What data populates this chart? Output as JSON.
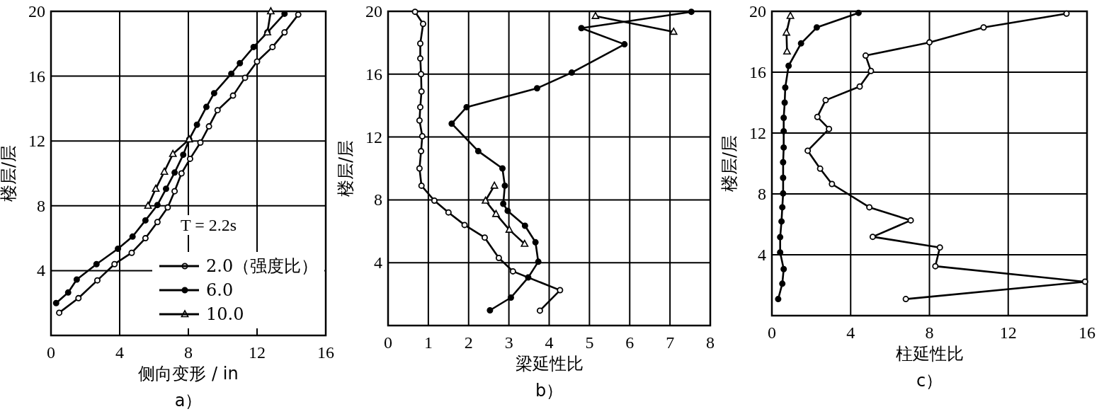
{
  "chart_data": [
    {
      "type": "line",
      "title": "a）",
      "xlabel": "侧向变形 / in",
      "ylabel": "楼层/层",
      "xlim": [
        0,
        16
      ],
      "ylim": [
        0,
        20
      ],
      "xticks": [
        0,
        4,
        8,
        12,
        16
      ],
      "yticks": [
        4,
        8,
        12,
        16,
        20
      ],
      "grid": true,
      "legend": "bottom right",
      "annotations": [
        "T = 2.2s"
      ],
      "series": [
        {
          "name": "2.0（强度比）",
          "color": "#000000",
          "marker": "circle",
          "x": [
            0.48,
            1.6,
            2.7,
            3.7,
            4.7,
            5.5,
            6.2,
            6.8,
            7.2,
            7.6,
            8.1,
            8.7,
            9.2,
            9.7,
            10.6,
            11.3,
            12.0,
            12.9,
            13.6,
            14.4
          ],
          "values": [
            1.4,
            2.3,
            3.4,
            4.4,
            5.1,
            6.0,
            7.0,
            7.9,
            8.9,
            10.0,
            10.9,
            11.9,
            12.9,
            13.9,
            14.8,
            15.9,
            16.9,
            17.8,
            18.7,
            19.8
          ]
        },
        {
          "name": "6.0",
          "color": "#000000",
          "marker": "circle",
          "x": [
            0.3,
            1.0,
            1.5,
            2.65,
            3.9,
            4.75,
            5.5,
            6.2,
            6.7,
            7.2,
            7.7,
            8.05,
            8.5,
            9.05,
            9.5,
            10.5,
            11.0,
            11.8,
            12.6,
            13.6
          ],
          "values": [
            2.0,
            2.65,
            3.45,
            4.4,
            5.35,
            6.1,
            7.1,
            8.05,
            9.05,
            10.05,
            11.15,
            12.1,
            13.0,
            14.1,
            14.95,
            16.15,
            16.8,
            17.8,
            18.7,
            19.85
          ]
        },
        {
          "name": "10.0",
          "color": "#000000",
          "marker": "triangle",
          "x": [
            5.65,
            6.1,
            6.6,
            7.1,
            8.05,
            null,
            12.6,
            12.8
          ],
          "values": [
            8.0,
            9.05,
            10.1,
            11.2,
            12.1,
            null,
            18.7,
            20.0
          ]
        }
      ]
    },
    {
      "type": "line",
      "title": "b）",
      "xlabel": "梁延性比",
      "ylabel": "楼层/层",
      "xlim": [
        0,
        8
      ],
      "ylim": [
        0,
        20
      ],
      "xticks": [
        0,
        1,
        2,
        3,
        4,
        5,
        6,
        7,
        8
      ],
      "yticks": [
        4,
        8,
        12,
        16,
        20
      ],
      "grid": true,
      "series": [
        {
          "color": "#000000",
          "marker": "circle",
          "x": [
            0.67,
            0.87,
            0.8,
            0.8,
            0.82,
            0.83,
            0.8,
            0.78,
            0.85,
            0.82,
            0.78,
            0.83,
            1.15,
            1.5,
            1.9,
            2.4,
            2.75,
            3.1,
            4.27,
            3.77
          ],
          "values": [
            19.97,
            19.2,
            17.95,
            17.0,
            16.0,
            14.9,
            13.9,
            13.05,
            12.05,
            11.1,
            10.0,
            8.9,
            7.95,
            7.2,
            6.4,
            5.6,
            4.3,
            3.45,
            2.25,
            0.95
          ]
        },
        {
          "color": "#000000",
          "marker": "circle",
          "x": [
            2.53,
            3.05,
            3.48,
            3.73,
            3.66,
            3.4,
            2.97,
            2.86,
            2.9,
            2.84,
            2.24,
            1.58,
            1.95,
            3.7,
            4.56,
            5.87,
            4.8,
            7.53
          ],
          "values": [
            0.97,
            1.78,
            3.06,
            4.06,
            5.3,
            6.35,
            7.3,
            7.75,
            8.9,
            10.0,
            11.1,
            12.85,
            13.9,
            15.1,
            16.1,
            17.9,
            18.93,
            19.97
          ]
        },
        {
          "color": "#000000",
          "marker": "triangle",
          "x": [
            3.39,
            3.01,
            2.68,
            2.42,
            2.64,
            null,
            7.09,
            5.15
          ],
          "values": [
            5.2,
            6.1,
            7.1,
            7.95,
            8.9,
            null,
            18.7,
            19.7
          ]
        }
      ]
    },
    {
      "type": "line",
      "title": "c）",
      "xlabel": "柱延性比",
      "ylabel": "楼层/层",
      "xlim": [
        0,
        16
      ],
      "ylim": [
        0,
        20
      ],
      "xticks": [
        0,
        4,
        8,
        12,
        16
      ],
      "yticks": [
        4,
        8,
        12,
        16,
        20
      ],
      "grid": true,
      "series": [
        {
          "color": "#000000",
          "marker": "circle",
          "x": [
            6.8,
            15.9,
            8.3,
            8.53,
            5.12,
            7.05,
            4.95,
            3.05,
            2.45,
            1.82,
            2.9,
            2.31,
            2.73,
            4.46,
            5.03,
            4.76,
            8.0,
            10.75,
            14.96
          ],
          "values": [
            1.09,
            2.23,
            3.25,
            4.48,
            5.18,
            6.26,
            7.12,
            8.65,
            9.66,
            10.84,
            12.27,
            13.06,
            14.16,
            15.06,
            16.08,
            17.09,
            17.96,
            18.94,
            19.85
          ]
        },
        {
          "color": "#000000",
          "marker": "circle",
          "x": [
            0.32,
            0.53,
            0.6,
            0.42,
            0.42,
            0.49,
            0.53,
            0.57,
            0.57,
            0.57,
            0.6,
            0.6,
            0.6,
            0.65,
            0.68,
            0.85,
            1.48,
            2.28,
            4.4
          ],
          "values": [
            1.09,
            2.1,
            3.06,
            4.15,
            5.16,
            6.19,
            7.12,
            8.03,
            9.06,
            10.08,
            11.05,
            12.12,
            13.0,
            14.0,
            14.99,
            16.42,
            17.89,
            18.94,
            19.9
          ]
        },
        {
          "color": "#000000",
          "marker": "triangle",
          "x": [
            0.77,
            0.74,
            0.94
          ],
          "values": [
            17.36,
            18.6,
            19.7
          ]
        }
      ]
    }
  ]
}
